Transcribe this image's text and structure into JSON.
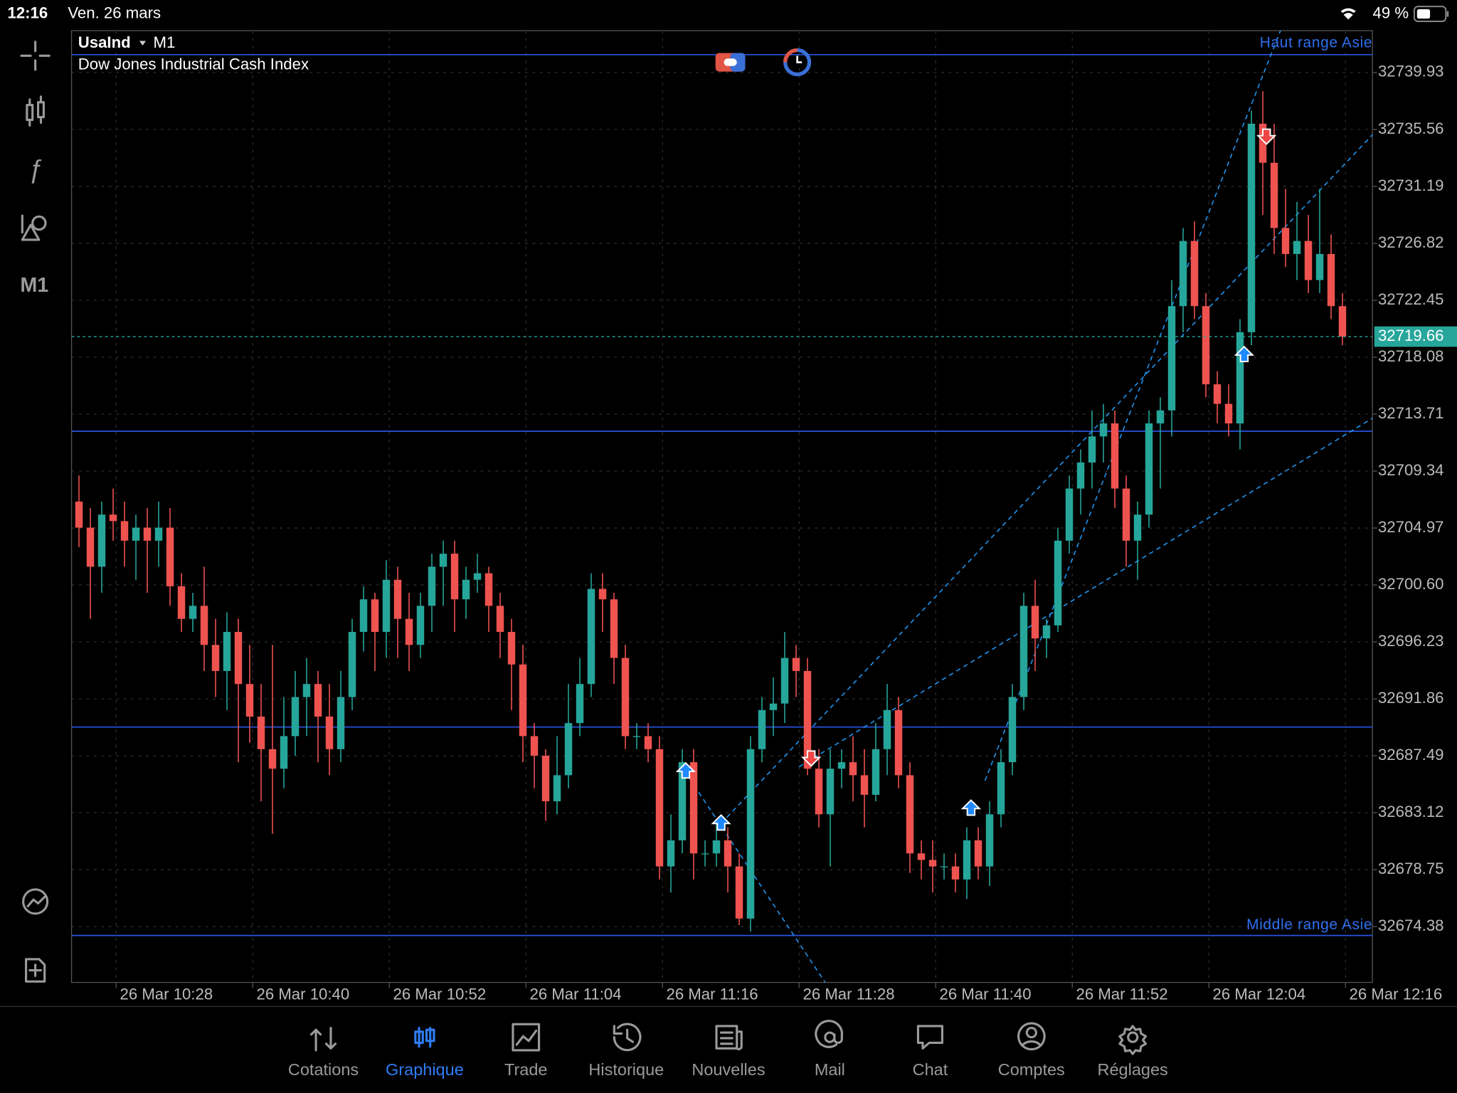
{
  "status": {
    "time": "12:16",
    "date": "Ven. 26 mars",
    "battery": "49 %"
  },
  "sidebar": {
    "timeframe": "M1"
  },
  "chart_data": {
    "type": "candlestick",
    "symbol": "UsaInd",
    "timeframe": "M1",
    "title": "Dow Jones Industrial Cash Index",
    "up_color": "#26a69a",
    "down_color": "#ef5350",
    "ylim": [
      32670.1,
      32743.14
    ],
    "yticks": [
      32739.93,
      32735.56,
      32731.19,
      32726.82,
      32722.45,
      32718.08,
      32713.71,
      32709.34,
      32704.97,
      {
        "value": 32700.6,
        "label": "32700.60"
      },
      32696.23,
      32691.86,
      32687.49,
      32683.12,
      32678.75,
      32674.38
    ],
    "xticks": [
      "26 Mar 10:28",
      "26 Mar 10:40",
      "26 Mar 10:52",
      "26 Mar 11:04",
      "26 Mar 11:16",
      "26 Mar 11:28",
      "26 Mar 11:40",
      "26 Mar 11:52",
      "26 Mar 12:04",
      "26 Mar 12:16"
    ],
    "grid": true,
    "current_price": 32719.66,
    "levels": [
      {
        "name": "Haut range Asie",
        "value": 32741.3
      },
      {
        "value": 32712.4
      },
      {
        "value": 32689.7
      },
      {
        "name": "Middle range Asie",
        "value": 32673.7
      }
    ],
    "level_color": "#2a55e0",
    "candles": [
      [
        32707,
        32709,
        32703.5,
        32705
      ],
      [
        32705,
        32706.5,
        32698,
        32702
      ],
      [
        32702,
        32707,
        32700,
        32706
      ],
      [
        32706,
        32708,
        32704,
        32705.5
      ],
      [
        32705.5,
        32707,
        32702,
        32704
      ],
      [
        32704,
        32706,
        32701,
        32705
      ],
      [
        32705,
        32706.5,
        32700,
        32704
      ],
      [
        32704,
        32707,
        32702,
        32705
      ],
      [
        32705,
        32706.5,
        32699,
        32700.5
      ],
      [
        32700.5,
        32701.5,
        32697,
        32698
      ],
      [
        32698,
        32700,
        32697,
        32699
      ],
      [
        32699,
        32702,
        32694,
        32696
      ],
      [
        32696,
        32698,
        32692,
        32694
      ],
      [
        32694,
        32698.5,
        32691,
        32697
      ],
      [
        32697,
        32698,
        32687,
        32693
      ],
      [
        32693,
        32696,
        32688.5,
        32690.5
      ],
      [
        32690.5,
        32693,
        32684,
        32688
      ],
      [
        32688,
        32696,
        32681.5,
        32686.5
      ],
      [
        32686.5,
        32692,
        32685,
        32689
      ],
      [
        32689,
        32694,
        32687.5,
        32692
      ],
      [
        32692,
        32695,
        32689,
        32693
      ],
      [
        32693,
        32694,
        32687,
        32690.5
      ],
      [
        32690.5,
        32693,
        32686,
        32688
      ],
      [
        32688,
        32694,
        32687,
        32692
      ],
      [
        32692,
        32698,
        32691,
        32697
      ],
      [
        32697,
        32700.5,
        32695.5,
        32699.5
      ],
      [
        32699.5,
        32700,
        32694,
        32697
      ],
      [
        32697,
        32702.5,
        32695,
        32701
      ],
      [
        32701,
        32702,
        32695,
        32698
      ],
      [
        32698,
        32700,
        32694,
        32696
      ],
      [
        32696,
        32700,
        32695,
        32699
      ],
      [
        32699,
        32703,
        32697,
        32702
      ],
      [
        32702,
        32704,
        32699,
        32703
      ],
      [
        32703,
        32704,
        32697,
        32699.5
      ],
      [
        32699.5,
        32702,
        32698,
        32701
      ],
      [
        32701,
        32703,
        32700,
        32701.5
      ],
      [
        32701.5,
        32702,
        32697,
        32699
      ],
      [
        32699,
        32700,
        32695,
        32697
      ],
      [
        32697,
        32698,
        32691,
        32694.5
      ],
      [
        32694.5,
        32696,
        32687,
        32689
      ],
      [
        32689,
        32690,
        32685,
        32687.5
      ],
      [
        32687.5,
        32688,
        32682.5,
        32684
      ],
      [
        32684,
        32689,
        32683,
        32686
      ],
      [
        32686,
        32693,
        32685,
        32690
      ],
      [
        32690,
        32695,
        32689,
        32693
      ],
      [
        32693,
        32701.5,
        32692,
        32700.3
      ],
      [
        32700.3,
        32701.5,
        32697,
        32699.5
      ],
      [
        32699.5,
        32700,
        32693,
        32695
      ],
      [
        32695,
        32696,
        32688,
        32689
      ],
      [
        32689,
        32690,
        32688,
        32689
      ],
      [
        32689,
        32690,
        32687,
        32688
      ],
      [
        32688,
        32689,
        32678,
        32679
      ],
      [
        32679,
        32683,
        32677,
        32681
      ],
      [
        32681,
        32688,
        32680,
        32687
      ],
      [
        32687,
        32688,
        32678,
        32680
      ],
      [
        32680,
        32681,
        32679,
        32680
      ],
      [
        32680,
        32682.5,
        32679,
        32681
      ],
      [
        32681,
        32682,
        32677,
        32679
      ],
      [
        32679,
        32680,
        32674.5,
        32675
      ],
      [
        32675,
        32689,
        32674,
        32688
      ],
      [
        32688,
        32692,
        32687,
        32691
      ],
      [
        32691,
        32693.5,
        32689,
        32691.5
      ],
      [
        32691.5,
        32697,
        32690,
        32695
      ],
      [
        32695,
        32696,
        32692,
        32694
      ],
      [
        32694,
        32695,
        32686,
        32686.5
      ],
      [
        32686.5,
        32688,
        32682,
        32683
      ],
      [
        32683,
        32688,
        32679,
        32686.5
      ],
      [
        32686.5,
        32688,
        32685,
        32687
      ],
      [
        32687,
        32689,
        32684,
        32686
      ],
      [
        32686,
        32688,
        32682,
        32684.5
      ],
      [
        32684.5,
        32690,
        32684,
        32688
      ],
      [
        32688,
        32693,
        32686,
        32691
      ],
      [
        32691,
        32692,
        32685,
        32686
      ],
      [
        32686,
        32687,
        32678.5,
        32680
      ],
      [
        32680,
        32681,
        32678,
        32679.5
      ],
      [
        32679.5,
        32681,
        32677,
        32679
      ],
      [
        32679,
        32680,
        32678,
        32679
      ],
      [
        32679,
        32680,
        32677,
        32678
      ],
      [
        32678,
        32682,
        32676.5,
        32681
      ],
      [
        32681,
        32682,
        32678,
        32679
      ],
      [
        32679,
        32684,
        32677.5,
        32683
      ],
      [
        32683,
        32688,
        32682,
        32687
      ],
      [
        32687,
        32693,
        32686,
        32692
      ],
      [
        32692,
        32700,
        32691,
        32699
      ],
      [
        32699,
        32701,
        32694,
        32696.5
      ],
      [
        32696.5,
        32698,
        32695,
        32697.5
      ],
      [
        32697.5,
        32705,
        32697,
        32704
      ],
      [
        32704,
        32709,
        32703,
        32708
      ],
      [
        32708,
        32711,
        32706,
        32710
      ],
      [
        32710,
        32714,
        32708,
        32712
      ],
      [
        32712,
        32714.5,
        32710,
        32713
      ],
      [
        32713,
        32714,
        32706.5,
        32708
      ],
      [
        32708,
        32709,
        32702,
        32704
      ],
      [
        32704,
        32707,
        32701,
        32706
      ],
      [
        32706,
        32714,
        32705,
        32713
      ],
      [
        32713,
        32715,
        32708,
        32714
      ],
      [
        32714,
        32724,
        32712,
        32722
      ],
      [
        32722,
        32728,
        32720,
        32727
      ],
      [
        32727,
        32728.5,
        32721,
        32722
      ],
      [
        32722,
        32723,
        32715,
        32716
      ],
      [
        32716,
        32717,
        32713,
        32714.5
      ],
      [
        32714.5,
        32716,
        32712,
        32713
      ],
      [
        32713,
        32721,
        32711,
        32720
      ],
      [
        32720,
        32737,
        32719,
        32736
      ],
      [
        32736,
        32738.5,
        32729,
        32733
      ],
      [
        32733,
        32736,
        32726,
        32728
      ],
      [
        32728,
        32731,
        32725,
        32726
      ],
      [
        32726,
        32730,
        32724,
        32727
      ],
      [
        32727,
        32729,
        32723,
        32724
      ],
      [
        32724,
        32731,
        32723,
        32726
      ],
      [
        32726,
        32727.5,
        32721,
        32722
      ],
      [
        32722,
        32723,
        32719,
        32719.66
      ]
    ]
  },
  "tabs": [
    "Cotations",
    "Graphique",
    "Trade",
    "Historique",
    "Nouvelles",
    "Mail",
    "Chat",
    "Comptes",
    "Réglages"
  ],
  "active_tab": 1
}
